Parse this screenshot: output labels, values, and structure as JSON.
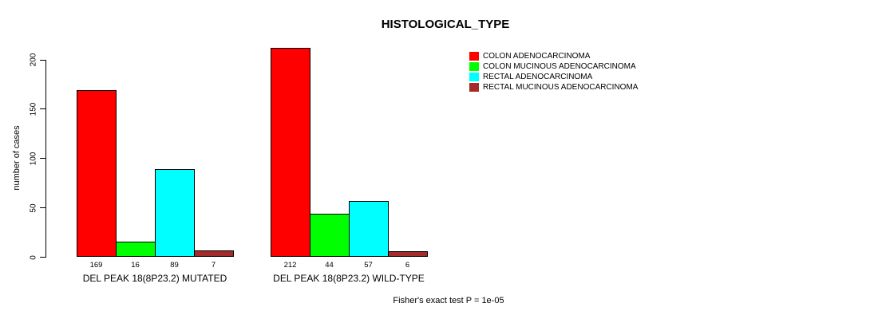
{
  "title": "HISTOLOGICAL_TYPE",
  "footer": "Fisher's exact test P = 1e-05",
  "chart_data": {
    "type": "bar",
    "title": "HISTOLOGICAL_TYPE",
    "xlabel": "",
    "ylabel": "number of cases",
    "ylim": [
      0,
      200
    ],
    "yticks": [
      0,
      50,
      100,
      150,
      200
    ],
    "grid": false,
    "legend_position": "top-right",
    "series": [
      {
        "name": "COLON ADENOCARCINOMA",
        "color": "#FF0000"
      },
      {
        "name": "COLON MUCINOUS ADENOCARCINOMA",
        "color": "#00FF00"
      },
      {
        "name": "RECTAL ADENOCARCINOMA",
        "color": "#00FFFF"
      },
      {
        "name": "RECTAL MUCINOUS ADENOCARCINOMA",
        "color": "#A52A2A"
      }
    ],
    "groups": [
      {
        "label": "DEL PEAK 18(8P23.2) MUTATED",
        "values": [
          169,
          16,
          89,
          7
        ]
      },
      {
        "label": "DEL PEAK 18(8P23.2) WILD-TYPE",
        "values": [
          212,
          44,
          57,
          6
        ]
      }
    ],
    "annotation": "Fisher's exact test P = 1e-05"
  }
}
